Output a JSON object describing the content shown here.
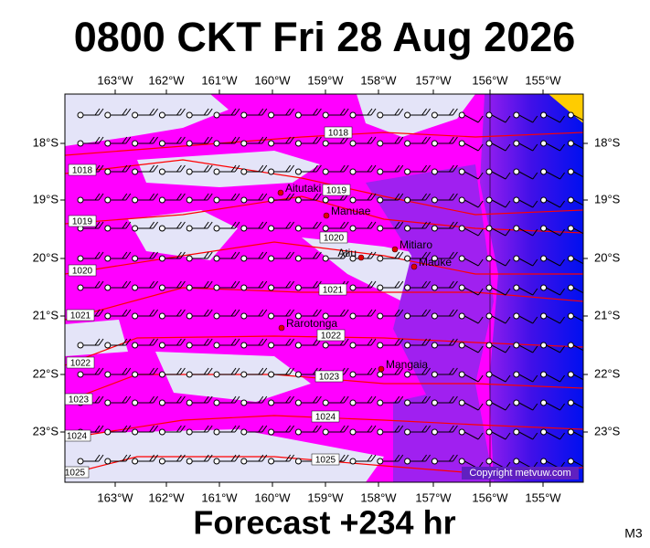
{
  "header": {
    "title": "0800 CKT Fri 28 Aug 2026"
  },
  "footer": {
    "forecast": "Forecast +234 hr",
    "model": "M3"
  },
  "map": {
    "longitudes": [
      "163°W",
      "162°W",
      "161°W",
      "160°W",
      "159°W",
      "158°W",
      "157°W",
      "156°W",
      "155°W"
    ],
    "latitudes": [
      "18°S",
      "19°S",
      "20°S",
      "21°S",
      "22°S",
      "23°S"
    ],
    "islands": [
      "Aitutaki",
      "Manuae",
      "Mitiaro",
      "Atiu",
      "Mauke",
      "Rarotonga",
      "Mangaia"
    ],
    "isobar_labels": [
      "1018",
      "1018",
      "1019",
      "1019",
      "1020",
      "1020",
      "1021",
      "1021",
      "1022",
      "1022",
      "1023",
      "1023",
      "1024",
      "1024",
      "1025",
      "1025"
    ],
    "copyright": "Copyright metvuw.com"
  }
}
